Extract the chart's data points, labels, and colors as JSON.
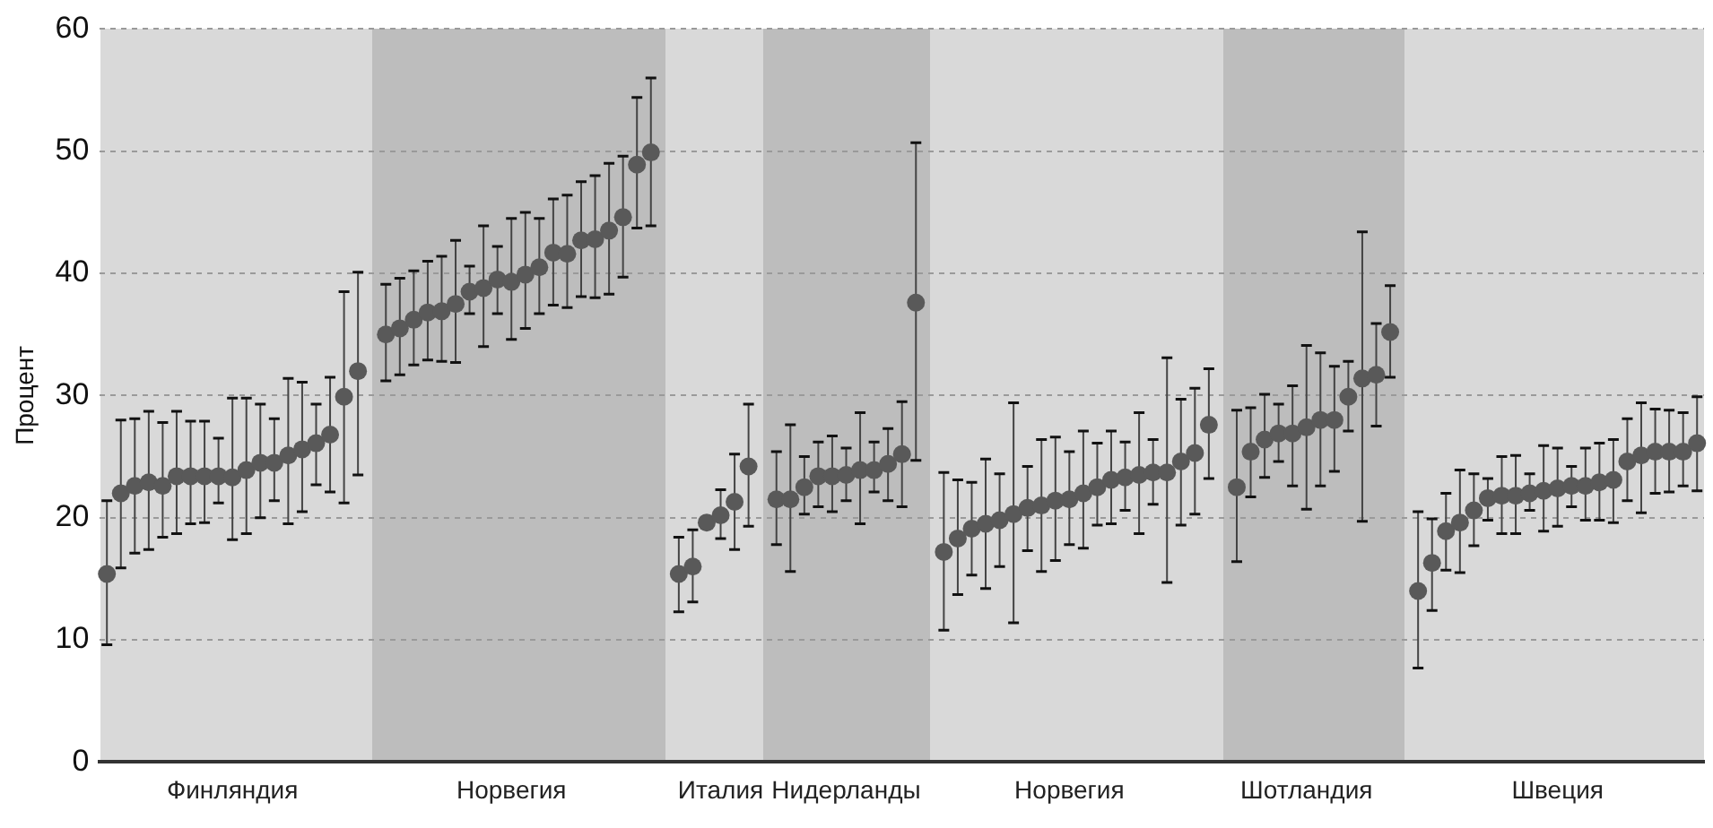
{
  "chart_data": {
    "type": "scatter",
    "ylabel": "Процент",
    "ylim": [
      0,
      60
    ],
    "yticks": [
      0,
      10,
      20,
      30,
      40,
      50,
      60
    ],
    "grid": "y",
    "marker": "circle",
    "categories": [
      null,
      null,
      null,
      null,
      null,
      null,
      null,
      null,
      null,
      "Финляндия",
      null,
      null,
      null,
      null,
      null,
      null,
      null,
      null,
      null,
      null,
      null,
      null,
      null,
      null,
      null,
      null,
      null,
      null,
      null,
      "Норвегия",
      null,
      null,
      null,
      null,
      null,
      null,
      null,
      null,
      null,
      null,
      null,
      null,
      null,
      null,
      "Италия",
      null,
      null,
      null,
      null,
      null,
      null,
      null,
      null,
      "Нидерланды",
      null,
      null,
      null,
      null,
      null,
      null,
      null,
      null,
      null,
      null,
      null,
      null,
      null,
      null,
      null,
      "Норвегия",
      null,
      null,
      null,
      null,
      null,
      null,
      null,
      null,
      null,
      null,
      null,
      null,
      null,
      null,
      null,
      null,
      "Шотландия",
      null,
      null,
      null,
      null,
      null,
      null,
      null,
      null,
      null,
      null,
      null,
      null,
      null,
      null,
      null,
      null,
      null,
      "Швеция",
      null,
      null,
      null,
      null,
      null,
      null,
      null,
      null,
      null,
      null
    ],
    "series": [
      {
        "color": "#595959",
        "values": [
          15.4,
          22.0,
          22.6,
          22.9,
          22.6,
          23.4,
          23.4,
          23.4,
          23.4,
          23.3,
          23.9,
          24.5,
          24.5,
          25.1,
          25.6,
          26.1,
          26.8,
          29.9,
          32.0,
          null,
          35.0,
          35.5,
          36.2,
          36.8,
          36.9,
          37.5,
          38.5,
          38.8,
          39.5,
          39.3,
          39.9,
          40.5,
          41.7,
          41.6,
          42.7,
          42.8,
          43.5,
          44.6,
          48.9,
          49.9,
          null,
          15.4,
          16.0,
          19.6,
          20.2,
          21.3,
          24.2,
          null,
          21.5,
          21.5,
          22.5,
          23.4,
          23.4,
          23.5,
          23.9,
          23.9,
          24.4,
          25.2,
          37.6,
          null,
          17.2,
          18.3,
          19.1,
          19.5,
          19.8,
          20.3,
          20.8,
          21.0,
          21.4,
          21.5,
          22.0,
          22.5,
          23.1,
          23.3,
          23.5,
          23.7,
          23.7,
          24.6,
          25.3,
          27.6,
          null,
          22.5,
          25.4,
          26.4,
          26.9,
          26.9,
          27.4,
          28.0,
          28.0,
          29.9,
          31.4,
          31.7,
          35.2,
          null,
          14.0,
          16.3,
          18.9,
          19.6,
          20.6,
          21.6,
          21.8,
          21.8,
          22.0,
          22.2,
          22.4,
          22.6,
          22.6,
          22.9,
          23.1,
          24.6,
          25.1,
          25.4,
          25.4,
          25.4,
          26.1
        ],
        "errors": [
          [
            9.6,
            21.4
          ],
          [
            15.9,
            28.0
          ],
          [
            17.1,
            28.1
          ],
          [
            17.4,
            28.7
          ],
          [
            18.4,
            27.8
          ],
          [
            18.7,
            28.7
          ],
          [
            19.5,
            27.9
          ],
          [
            19.6,
            27.9
          ],
          [
            21.2,
            26.5
          ],
          [
            18.2,
            29.8
          ],
          [
            18.7,
            29.8
          ],
          [
            20.0,
            29.3
          ],
          [
            21.4,
            28.1
          ],
          [
            19.5,
            31.4
          ],
          [
            20.5,
            31.1
          ],
          [
            22.7,
            29.3
          ],
          [
            22.1,
            31.5
          ],
          [
            21.2,
            38.5
          ],
          [
            23.5,
            40.1
          ],
          null,
          [
            31.2,
            39.1
          ],
          [
            31.7,
            39.6
          ],
          [
            32.5,
            40.2
          ],
          [
            32.9,
            41.0
          ],
          [
            32.8,
            41.4
          ],
          [
            32.7,
            42.7
          ],
          [
            36.7,
            40.6
          ],
          [
            34.0,
            43.9
          ],
          [
            36.7,
            42.2
          ],
          [
            34.6,
            44.5
          ],
          [
            35.5,
            45.0
          ],
          [
            36.7,
            44.5
          ],
          [
            37.4,
            46.1
          ],
          [
            37.2,
            46.4
          ],
          [
            38.1,
            47.5
          ],
          [
            38.0,
            48.0
          ],
          [
            38.3,
            49.0
          ],
          [
            39.7,
            49.6
          ],
          [
            43.7,
            54.4
          ],
          [
            43.9,
            56.0
          ],
          null,
          [
            12.3,
            18.4
          ],
          [
            13.1,
            19.0
          ],
          null,
          [
            18.3,
            22.3
          ],
          [
            17.4,
            25.2
          ],
          [
            19.3,
            29.3
          ],
          null,
          [
            17.8,
            25.4
          ],
          [
            15.6,
            27.6
          ],
          [
            20.3,
            25.0
          ],
          [
            20.9,
            26.2
          ],
          [
            20.5,
            26.7
          ],
          [
            21.4,
            25.7
          ],
          [
            19.5,
            28.6
          ],
          [
            22.1,
            26.2
          ],
          [
            21.4,
            27.3
          ],
          [
            20.9,
            29.5
          ],
          [
            24.7,
            50.7
          ],
          null,
          [
            10.8,
            23.7
          ],
          [
            13.7,
            23.1
          ],
          [
            15.3,
            22.9
          ],
          [
            14.2,
            24.8
          ],
          [
            16.0,
            23.6
          ],
          [
            11.4,
            29.4
          ],
          [
            17.3,
            24.2
          ],
          [
            15.6,
            26.4
          ],
          [
            16.5,
            26.6
          ],
          [
            17.8,
            25.4
          ],
          [
            17.5,
            27.1
          ],
          [
            19.4,
            26.1
          ],
          [
            19.5,
            27.1
          ],
          [
            20.6,
            26.2
          ],
          [
            18.7,
            28.6
          ],
          [
            21.1,
            26.4
          ],
          [
            14.7,
            33.1
          ],
          [
            19.4,
            29.7
          ],
          [
            20.3,
            30.6
          ],
          [
            23.2,
            32.2
          ],
          null,
          [
            16.4,
            28.8
          ],
          [
            21.7,
            29.0
          ],
          [
            23.3,
            30.1
          ],
          [
            24.6,
            29.3
          ],
          [
            22.6,
            30.8
          ],
          [
            20.7,
            34.1
          ],
          [
            22.6,
            33.5
          ],
          [
            23.8,
            32.4
          ],
          [
            27.1,
            32.8
          ],
          [
            19.7,
            43.4
          ],
          [
            27.5,
            35.9
          ],
          [
            31.5,
            39.0
          ],
          null,
          [
            7.7,
            20.5
          ],
          [
            12.4,
            19.9
          ],
          [
            15.7,
            22.0
          ],
          [
            15.5,
            23.9
          ],
          [
            17.7,
            23.6
          ],
          [
            19.8,
            23.2
          ],
          [
            18.7,
            25.0
          ],
          [
            18.7,
            25.1
          ],
          [
            20.6,
            23.6
          ],
          [
            18.9,
            25.9
          ],
          [
            19.3,
            25.7
          ],
          [
            20.9,
            24.2
          ],
          [
            19.8,
            25.7
          ],
          [
            19.8,
            26.1
          ],
          [
            19.6,
            26.4
          ],
          [
            21.4,
            28.1
          ],
          [
            20.4,
            29.4
          ],
          [
            22.0,
            28.9
          ],
          [
            22.1,
            28.8
          ],
          [
            22.6,
            28.6
          ],
          [
            22.2,
            29.9
          ]
        ]
      }
    ]
  }
}
